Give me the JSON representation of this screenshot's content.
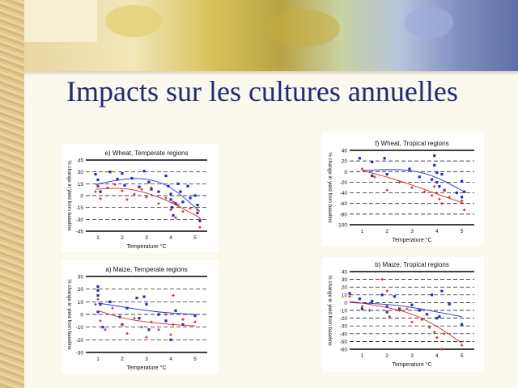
{
  "slide": {
    "title": "Impacts sur les cultures annuelles"
  },
  "colors": {
    "blue": "#1f2bd6",
    "red": "#d8231f",
    "title": "#1f2a78"
  },
  "chart_data": [
    {
      "id": "wheat_temperate",
      "type": "scatter",
      "title": "e) Wheat, Temperate regions",
      "xlabel": "Temperature °C",
      "ylabel": "% change in yield from baseline",
      "xlim": [
        0.5,
        5.5
      ],
      "ylim": [
        -45,
        45
      ],
      "xticks": [
        1,
        2,
        3,
        4,
        5
      ],
      "yticks": [
        -45,
        -30,
        -15,
        0,
        15,
        30,
        45
      ],
      "series": [
        {
          "color": "blue",
          "points": [
            [
              0.9,
              27
            ],
            [
              1,
              20
            ],
            [
              1,
              12
            ],
            [
              1.1,
              5
            ],
            [
              1.5,
              30
            ],
            [
              1.8,
              21
            ],
            [
              2,
              28
            ],
            [
              2.1,
              13
            ],
            [
              2.4,
              22
            ],
            [
              2.7,
              11
            ],
            [
              2.9,
              31
            ],
            [
              3.1,
              17
            ],
            [
              3.2,
              8
            ],
            [
              3.5,
              5
            ],
            [
              3.8,
              25
            ],
            [
              3.9,
              12
            ],
            [
              4,
              2
            ],
            [
              4,
              -5
            ],
            [
              4.05,
              -15
            ],
            [
              4.1,
              -25
            ],
            [
              4.2,
              -10
            ],
            [
              4.3,
              15
            ],
            [
              4.4,
              5
            ],
            [
              4.5,
              -8
            ],
            [
              4.7,
              12
            ],
            [
              4.8,
              -3
            ],
            [
              5,
              0
            ],
            [
              5.1,
              -12
            ],
            [
              5.1,
              -22
            ],
            [
              5.2,
              -32
            ]
          ],
          "curve": [
            [
              0.9,
              14
            ],
            [
              2,
              21
            ],
            [
              3,
              22
            ],
            [
              4,
              12
            ],
            [
              5.2,
              -20
            ]
          ]
        },
        {
          "color": "red",
          "points": [
            [
              0.9,
              5
            ],
            [
              1,
              12
            ],
            [
              1.1,
              -4
            ],
            [
              1.4,
              10
            ],
            [
              1.7,
              14
            ],
            [
              2,
              6
            ],
            [
              2.2,
              -5
            ],
            [
              2.5,
              2
            ],
            [
              2.8,
              8
            ],
            [
              3,
              -2
            ],
            [
              3.2,
              10
            ],
            [
              3.5,
              -10
            ],
            [
              3.8,
              -3
            ],
            [
              4,
              -18
            ],
            [
              4.1,
              -8
            ],
            [
              4.2,
              -28
            ],
            [
              4.3,
              -12
            ],
            [
              4.5,
              -20
            ],
            [
              4.8,
              -16
            ],
            [
              5.1,
              -18
            ],
            [
              5.2,
              -30
            ],
            [
              5.2,
              -40
            ]
          ],
          "curve": [
            [
              0.9,
              8
            ],
            [
              2,
              10
            ],
            [
              3,
              4
            ],
            [
              4,
              -8
            ],
            [
              5.2,
              -28
            ]
          ]
        }
      ]
    },
    {
      "id": "wheat_tropical",
      "type": "scatter",
      "title": "f) Wheat, Tropical regions",
      "xlabel": "Temperature °C",
      "ylabel": "% change in yield from baseline",
      "xlim": [
        0.5,
        5.5
      ],
      "ylim": [
        -100,
        40
      ],
      "xticks": [
        1,
        2,
        3,
        4,
        5
      ],
      "yticks": [
        -100,
        -80,
        -60,
        -40,
        -20,
        0,
        20,
        40
      ],
      "series": [
        {
          "color": "blue",
          "points": [
            [
              0.9,
              25
            ],
            [
              1.4,
              18
            ],
            [
              1.4,
              -8
            ],
            [
              1.9,
              25
            ],
            [
              2,
              -5
            ],
            [
              2.9,
              5
            ],
            [
              3.3,
              -10
            ],
            [
              3.8,
              -15
            ],
            [
              3.9,
              30
            ],
            [
              3.9,
              12
            ],
            [
              4,
              -2
            ],
            [
              4,
              -20
            ],
            [
              4.1,
              -28
            ],
            [
              4.2,
              -5
            ],
            [
              4.3,
              -35
            ],
            [
              4.8,
              -40
            ],
            [
              5,
              -18
            ],
            [
              5,
              -48
            ],
            [
              5.1,
              -38
            ]
          ],
          "curve": [
            [
              1,
              2
            ],
            [
              2,
              4
            ],
            [
              3,
              3
            ],
            [
              4,
              -10
            ],
            [
              5.1,
              -38
            ]
          ]
        },
        {
          "color": "red",
          "points": [
            [
              1,
              5
            ],
            [
              1.5,
              -10
            ],
            [
              2,
              -35
            ],
            [
              2.5,
              -20
            ],
            [
              3,
              -30
            ],
            [
              3.5,
              -38
            ],
            [
              3.8,
              -45
            ],
            [
              3.9,
              -28
            ],
            [
              4,
              -40
            ],
            [
              4.1,
              -52
            ],
            [
              4.2,
              -60
            ],
            [
              4.3,
              -35
            ],
            [
              4.5,
              -48
            ],
            [
              5,
              -55
            ],
            [
              5.1,
              -72
            ]
          ],
          "curve": [
            [
              1,
              2
            ],
            [
              2,
              -10
            ],
            [
              3,
              -25
            ],
            [
              4,
              -42
            ],
            [
              5.1,
              -60
            ]
          ]
        }
      ]
    },
    {
      "id": "maize_temperate",
      "type": "scatter",
      "title": "a) Maize, Temperate regions",
      "xlabel": "Temperature °C",
      "ylabel": "% change in yield from baseline",
      "xlim": [
        0.5,
        5.5
      ],
      "ylim": [
        -30,
        30
      ],
      "xticks": [
        1,
        2,
        3,
        4,
        5
      ],
      "yticks": [
        -30,
        -20,
        -10,
        0,
        10,
        20,
        30
      ],
      "series": [
        {
          "color": "blue",
          "points": [
            [
              1,
              22
            ],
            [
              1,
              19
            ],
            [
              1,
              15
            ],
            [
              1.1,
              8
            ],
            [
              1,
              2
            ],
            [
              1.2,
              -10
            ],
            [
              1.5,
              10
            ],
            [
              1.9,
              -2
            ],
            [
              2,
              -8
            ],
            [
              2.2,
              5
            ],
            [
              2.6,
              13
            ],
            [
              2.7,
              -3
            ],
            [
              2.9,
              14
            ],
            [
              3,
              8
            ],
            [
              3.1,
              -12
            ],
            [
              3.5,
              0
            ],
            [
              3.8,
              -5
            ],
            [
              4,
              -20
            ],
            [
              4.2,
              3
            ],
            [
              4.5,
              -8
            ],
            [
              5,
              -1
            ]
          ],
          "curve": [
            [
              1,
              9
            ],
            [
              2,
              6
            ],
            [
              3,
              3
            ],
            [
              4,
              1
            ],
            [
              5,
              0
            ]
          ]
        },
        {
          "color": "red",
          "points": [
            [
              0.9,
              8
            ],
            [
              1,
              12
            ],
            [
              1.1,
              -5
            ],
            [
              1.3,
              -12
            ],
            [
              1.6,
              5
            ],
            [
              2,
              -8
            ],
            [
              2.2,
              -15
            ],
            [
              2.5,
              -3
            ],
            [
              2.8,
              -10
            ],
            [
              3,
              -18
            ],
            [
              3.2,
              -6
            ],
            [
              3.5,
              -12
            ],
            [
              3.8,
              0
            ],
            [
              4,
              -16
            ],
            [
              4.1,
              -8
            ],
            [
              4.1,
              15
            ],
            [
              4.5,
              -4
            ],
            [
              5,
              -6
            ]
          ],
          "curve": [
            [
              1,
              3
            ],
            [
              2,
              -3
            ],
            [
              3,
              -6
            ],
            [
              4,
              -8
            ],
            [
              5,
              -9
            ]
          ]
        }
      ]
    },
    {
      "id": "maize_tropical",
      "type": "scatter",
      "title": "b) Maize, Tropical regions",
      "xlabel": "Temperature °C",
      "ylabel": "% change in yield from baseline",
      "xlim": [
        0.5,
        5.5
      ],
      "ylim": [
        -60,
        40
      ],
      "xticks": [
        1,
        2,
        3,
        4,
        5
      ],
      "yticks": [
        -60,
        -50,
        -40,
        -30,
        -20,
        -10,
        0,
        10,
        20,
        30,
        40
      ],
      "series": [
        {
          "color": "blue",
          "points": [
            [
              0.5,
              12
            ],
            [
              0.9,
              5
            ],
            [
              1,
              -8
            ],
            [
              1.4,
              2
            ],
            [
              1.8,
              10
            ],
            [
              2,
              -5
            ],
            [
              2,
              -12
            ],
            [
              2.3,
              8
            ],
            [
              2.5,
              -8
            ],
            [
              3,
              -3
            ],
            [
              3.3,
              -10
            ],
            [
              3.6,
              -15
            ],
            [
              3.8,
              10
            ],
            [
              4,
              -20
            ],
            [
              4.1,
              -18
            ],
            [
              4.2,
              15
            ],
            [
              4.5,
              -2
            ],
            [
              5,
              -28
            ]
          ],
          "curve": [
            [
              0.5,
              0
            ],
            [
              2,
              -2
            ],
            [
              3,
              -6
            ],
            [
              4,
              -12
            ],
            [
              5,
              -18
            ]
          ]
        },
        {
          "color": "red",
          "points": [
            [
              0.5,
              8
            ],
            [
              1,
              -5
            ],
            [
              1.3,
              -10
            ],
            [
              1.8,
              30
            ],
            [
              2,
              15
            ],
            [
              2.1,
              -18
            ],
            [
              2.5,
              -10
            ],
            [
              2.8,
              -8
            ],
            [
              3,
              -25
            ],
            [
              3.4,
              -22
            ],
            [
              3.7,
              -32
            ],
            [
              3.9,
              -38
            ],
            [
              4,
              -45
            ],
            [
              4.2,
              -60
            ],
            [
              4.3,
              -40
            ],
            [
              5,
              -55
            ]
          ],
          "curve": [
            [
              0.5,
              2
            ],
            [
              2,
              -6
            ],
            [
              3,
              -14
            ],
            [
              4,
              -30
            ],
            [
              5,
              -52
            ]
          ]
        }
      ]
    }
  ]
}
